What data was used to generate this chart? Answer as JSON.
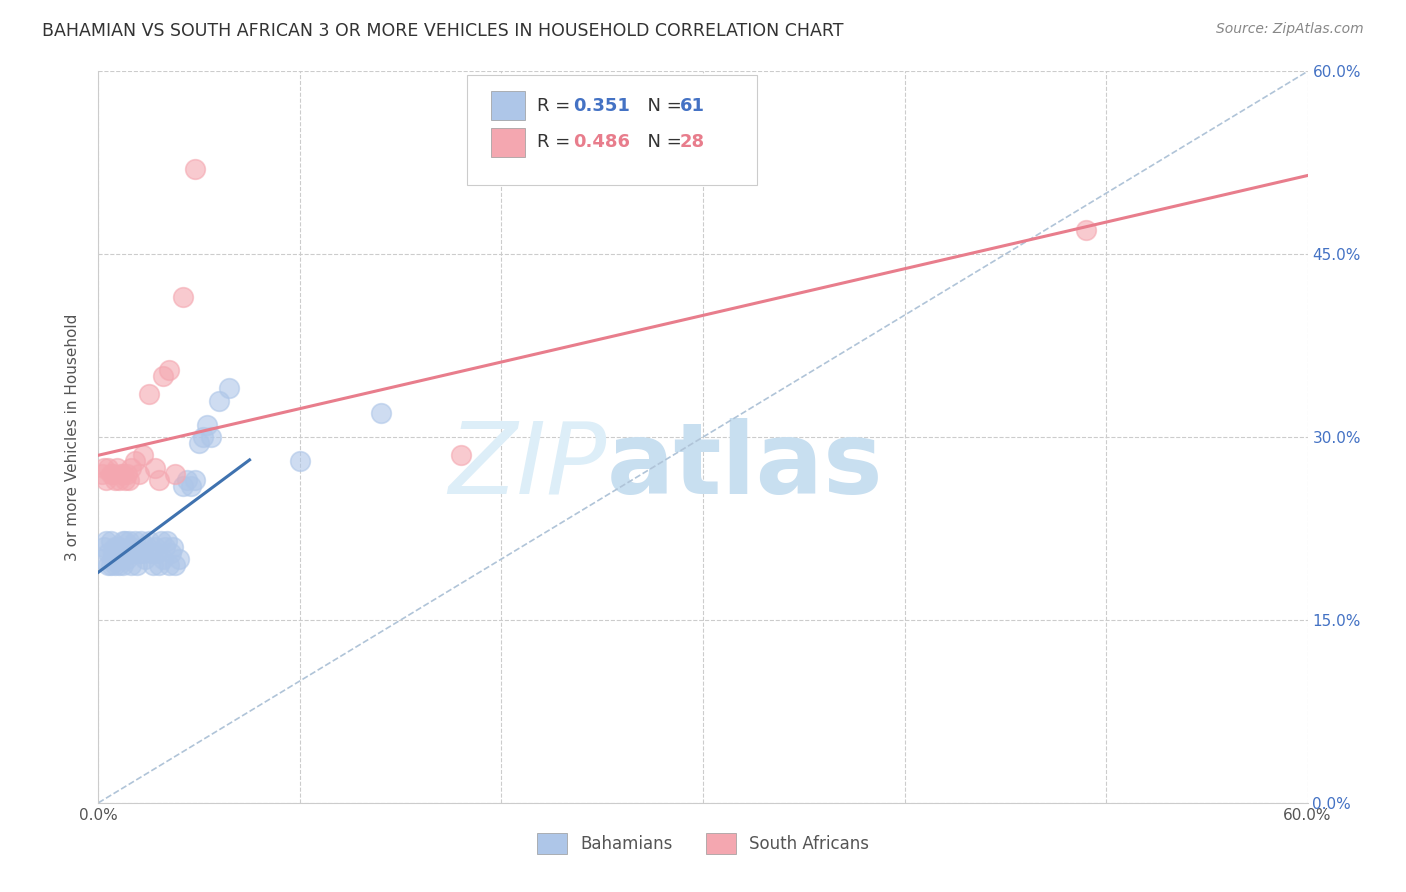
{
  "title": "BAHAMIAN VS SOUTH AFRICAN 3 OR MORE VEHICLES IN HOUSEHOLD CORRELATION CHART",
  "source": "Source: ZipAtlas.com",
  "ylabel": "3 or more Vehicles in Household",
  "xlim": [
    0.0,
    0.6
  ],
  "ylim": [
    0.0,
    0.6
  ],
  "grid_color": "#cccccc",
  "background_color": "#ffffff",
  "bahamians_color": "#aec6e8",
  "south_africans_color": "#f4a7b0",
  "bahamians_line_color": "#3f72af",
  "south_africans_line_color": "#e87d8c",
  "diagonal_color": "#b0c4d8",
  "legend_R_blue": "0.351",
  "legend_N_blue": "61",
  "legend_R_pink": "0.486",
  "legend_N_pink": "28",
  "legend_label_blue": "Bahamians",
  "legend_label_pink": "South Africans",
  "bahamians_x": [
    0.002,
    0.003,
    0.004,
    0.005,
    0.005,
    0.006,
    0.006,
    0.007,
    0.007,
    0.008,
    0.008,
    0.009,
    0.009,
    0.01,
    0.01,
    0.011,
    0.011,
    0.012,
    0.012,
    0.013,
    0.013,
    0.014,
    0.015,
    0.015,
    0.016,
    0.016,
    0.017,
    0.018,
    0.019,
    0.02,
    0.021,
    0.022,
    0.023,
    0.024,
    0.025,
    0.026,
    0.027,
    0.028,
    0.029,
    0.03,
    0.031,
    0.032,
    0.033,
    0.034,
    0.035,
    0.036,
    0.037,
    0.038,
    0.04,
    0.042,
    0.044,
    0.046,
    0.048,
    0.05,
    0.052,
    0.054,
    0.056,
    0.06,
    0.065,
    0.1,
    0.14
  ],
  "bahamians_y": [
    0.2,
    0.21,
    0.215,
    0.195,
    0.205,
    0.215,
    0.195,
    0.2,
    0.205,
    0.21,
    0.195,
    0.21,
    0.2,
    0.21,
    0.195,
    0.205,
    0.2,
    0.215,
    0.195,
    0.215,
    0.205,
    0.2,
    0.205,
    0.215,
    0.21,
    0.195,
    0.205,
    0.215,
    0.195,
    0.205,
    0.215,
    0.205,
    0.2,
    0.21,
    0.215,
    0.205,
    0.195,
    0.21,
    0.205,
    0.195,
    0.215,
    0.2,
    0.21,
    0.215,
    0.195,
    0.205,
    0.21,
    0.195,
    0.2,
    0.26,
    0.265,
    0.26,
    0.265,
    0.295,
    0.3,
    0.31,
    0.3,
    0.33,
    0.34,
    0.28,
    0.32
  ],
  "south_africans_x": [
    0.002,
    0.003,
    0.004,
    0.005,
    0.006,
    0.007,
    0.008,
    0.009,
    0.01,
    0.011,
    0.012,
    0.013,
    0.014,
    0.015,
    0.016,
    0.018,
    0.02,
    0.022,
    0.025,
    0.028,
    0.03,
    0.032,
    0.035,
    0.038,
    0.042,
    0.048,
    0.18,
    0.49
  ],
  "south_africans_y": [
    0.27,
    0.275,
    0.265,
    0.275,
    0.27,
    0.27,
    0.265,
    0.275,
    0.265,
    0.27,
    0.27,
    0.265,
    0.27,
    0.265,
    0.275,
    0.28,
    0.27,
    0.285,
    0.335,
    0.275,
    0.265,
    0.35,
    0.355,
    0.27,
    0.415,
    0.52,
    0.285,
    0.47
  ],
  "blue_line_x0": 0.0,
  "blue_line_y0": 0.185,
  "blue_line_x1": 0.075,
  "blue_line_y1": 0.345,
  "pink_line_x0": 0.0,
  "pink_line_y0": 0.25,
  "pink_line_x1": 0.6,
  "pink_line_y1": 0.47
}
